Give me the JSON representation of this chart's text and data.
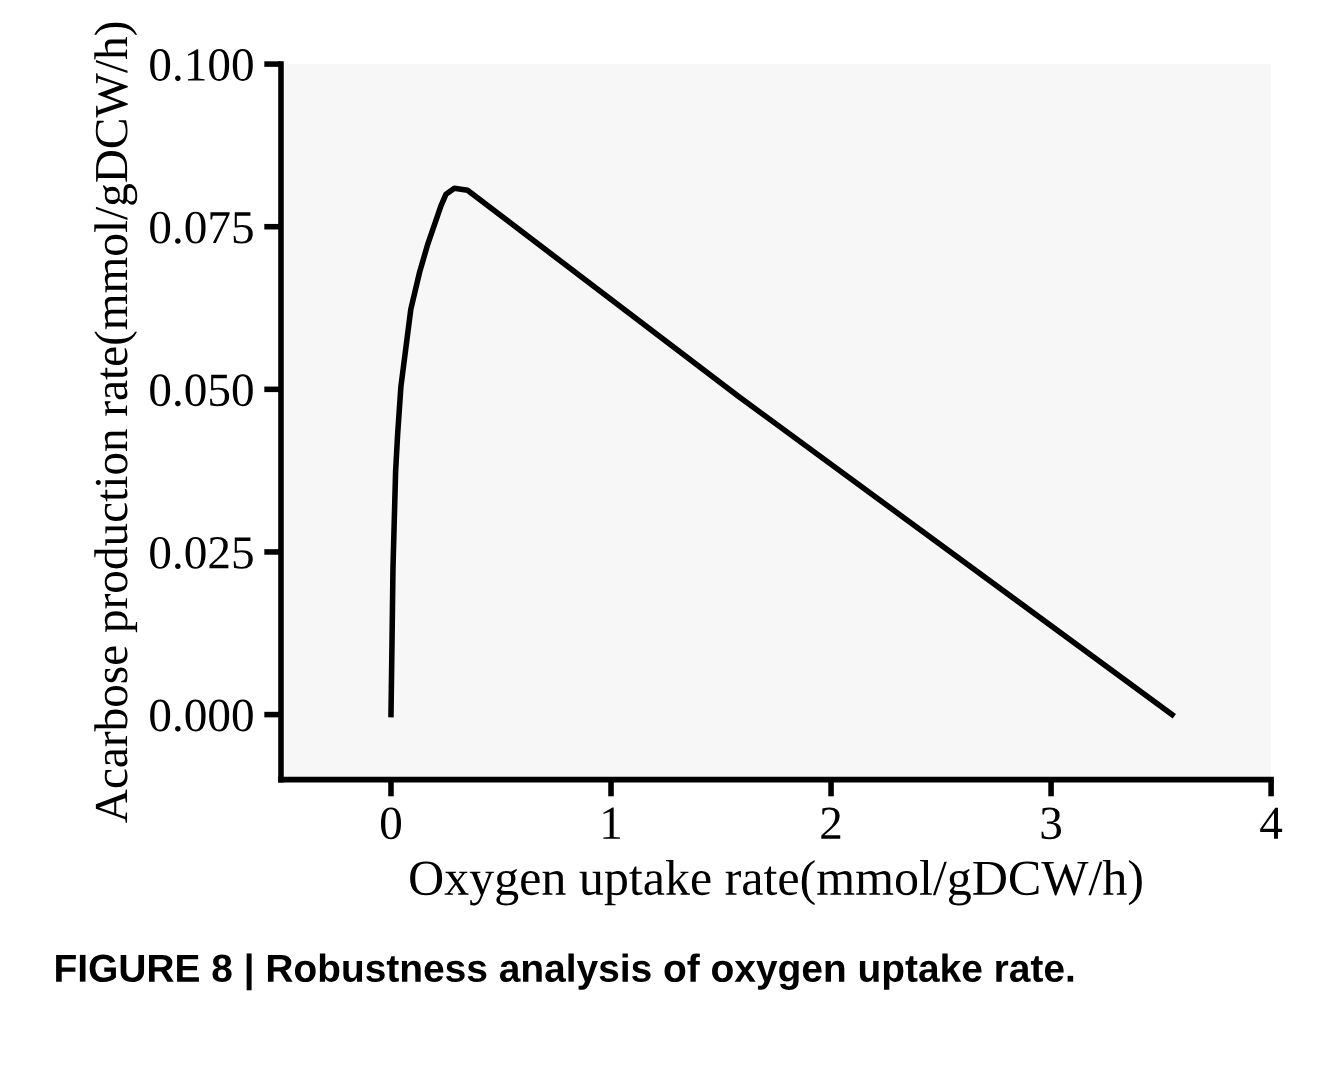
{
  "chart_data": {
    "type": "line",
    "xlabel": "Oxygen uptake rate(mmol/gDCW/h)",
    "ylabel": "Acarbose production rate(mmol/gDCW/h)",
    "annotations": [
      "FIGURE 8 | Robustness analysis of oxygen uptake rate."
    ],
    "series": [
      {
        "color": "#000000",
        "x": [
          0,
          0.005,
          0.009,
          0.021,
          0.03,
          0.045,
          0.09,
          0.13,
          0.166,
          0.227,
          0.25,
          0.288,
          0.348,
          1.58,
          3.55
        ],
        "values": [
          0,
          0.012,
          0.0225,
          0.0374,
          0.043,
          0.0504,
          0.0623,
          0.068,
          0.0722,
          0.0782,
          0.08,
          0.0809,
          0.0806,
          0.0489,
          0
        ]
      }
    ],
    "xlim": [
      -0.5,
      4
    ],
    "ylim": [
      -0.01,
      0.1
    ],
    "xticks": [
      0,
      1,
      2,
      3,
      4
    ],
    "yticks": [
      {
        "value": 0,
        "label": "0.000"
      },
      {
        "value": 0.025,
        "label": "0.025"
      },
      {
        "value": 0.05,
        "label": "0.050"
      },
      {
        "value": 0.075,
        "label": "0.075"
      },
      {
        "value": 0.1,
        "label": "0.100"
      }
    ],
    "grid": false,
    "legend": false,
    "marker": "none",
    "line_style": "solid"
  }
}
